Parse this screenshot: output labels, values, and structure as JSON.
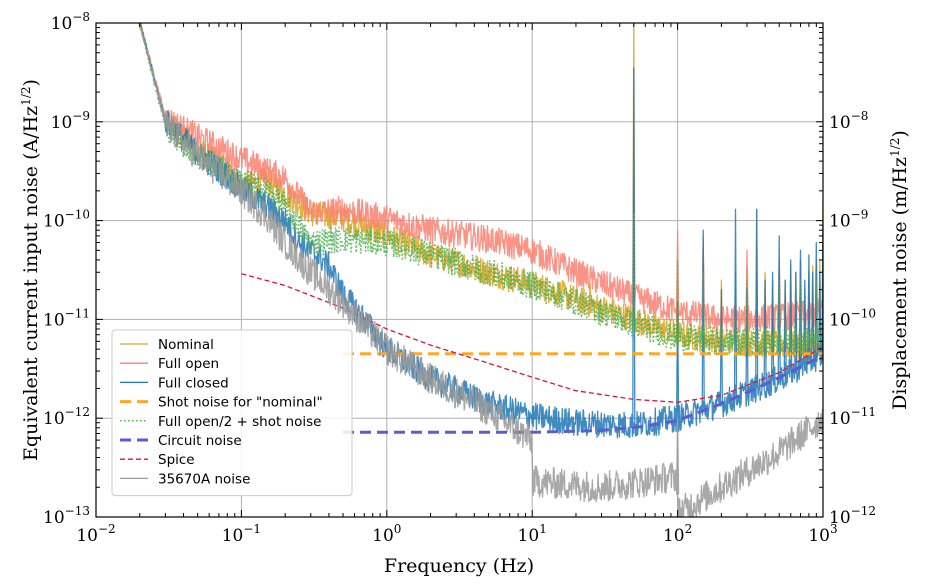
{
  "chart_data": {
    "type": "line",
    "xscale": "log",
    "yscale": "log",
    "xlim": [
      0.01,
      1000
    ],
    "ylim": [
      1e-13,
      1e-08
    ],
    "right_ylim": [
      1e-12,
      1e-07
    ],
    "grid": true,
    "legend_position": "lower-left",
    "xlabel": "Frequency (Hz)",
    "ylabel_left": "Equivalent current input noise (A/Hz",
    "ylabel_left_sup": "1/2",
    "ylabel_left_suffix": ")",
    "ylabel_right": "Displacement noise (m/Hz",
    "ylabel_right_sup": "1/2",
    "ylabel_right_suffix": ")",
    "x_ticks": [
      {
        "value": 0.01,
        "base": "10",
        "exp": "−2"
      },
      {
        "value": 0.1,
        "base": "10",
        "exp": "−1"
      },
      {
        "value": 1,
        "base": "10",
        "exp": "0"
      },
      {
        "value": 10,
        "base": "10",
        "exp": "1"
      },
      {
        "value": 100,
        "base": "10",
        "exp": "2"
      },
      {
        "value": 1000,
        "base": "10",
        "exp": "3"
      }
    ],
    "y_ticks_left": [
      {
        "value": 1e-13,
        "base": "10",
        "exp": "−13"
      },
      {
        "value": 1e-12,
        "base": "10",
        "exp": "−12"
      },
      {
        "value": 1e-11,
        "base": "10",
        "exp": "−11"
      },
      {
        "value": 1e-10,
        "base": "10",
        "exp": "−10"
      },
      {
        "value": 1e-09,
        "base": "10",
        "exp": "−9"
      },
      {
        "value": 1e-08,
        "base": "10",
        "exp": "−8"
      }
    ],
    "y_ticks_right": [
      {
        "value": 1e-12,
        "base": "10",
        "exp": "−12"
      },
      {
        "value": 1e-11,
        "base": "10",
        "exp": "−11"
      },
      {
        "value": 1e-10,
        "base": "10",
        "exp": "−10"
      },
      {
        "value": 1e-09,
        "base": "10",
        "exp": "−9"
      },
      {
        "value": 1e-08,
        "base": "10",
        "exp": "−8"
      }
    ],
    "series": [
      {
        "name": "Nominal",
        "color": "#daa520",
        "style": "solid",
        "width": 1.3,
        "noise_amp": 0.14,
        "dense": true,
        "points": [
          [
            0.01,
            3e-07
          ],
          [
            0.02,
            1e-08
          ],
          [
            0.03,
            1.05e-09
          ],
          [
            0.05,
            5.2e-10
          ],
          [
            0.08,
            3.2e-10
          ],
          [
            0.1,
            2.3e-10
          ],
          [
            0.15,
            2.5e-10
          ],
          [
            0.2,
            1.9e-10
          ],
          [
            0.3,
            1.2e-10
          ],
          [
            0.5,
            1.05e-10
          ],
          [
            1,
            7e-11
          ],
          [
            2,
            4.5e-11
          ],
          [
            5,
            3e-11
          ],
          [
            10,
            2.3e-11
          ],
          [
            20,
            1.6e-11
          ],
          [
            50,
            1e-11
          ],
          [
            100,
            7e-12
          ],
          [
            200,
            6e-12
          ],
          [
            500,
            5.5e-12
          ],
          [
            1000,
            5e-12
          ]
        ],
        "spikes": [
          [
            25,
            2.3e-11
          ],
          [
            50,
            1.2e-08
          ],
          [
            100,
            3.5e-11
          ],
          [
            150,
            7e-11
          ],
          [
            200,
            2.5e-11
          ],
          [
            250,
            3e-11
          ],
          [
            300,
            3.5e-11
          ],
          [
            350,
            1.3e-10
          ],
          [
            400,
            3e-11
          ],
          [
            450,
            2.5e-11
          ],
          [
            500,
            3e-11
          ],
          [
            550,
            2.5e-11
          ],
          [
            600,
            3.5e-11
          ],
          [
            650,
            3e-11
          ],
          [
            700,
            4e-11
          ],
          [
            750,
            2e-11
          ],
          [
            800,
            3e-11
          ],
          [
            850,
            3.5e-11
          ],
          [
            900,
            2.5e-11
          ],
          [
            950,
            4e-11
          ],
          [
            1000,
            1.6e-10
          ]
        ]
      },
      {
        "name": "Full open",
        "color": "#fa8072",
        "style": "solid",
        "width": 1.3,
        "noise_amp": 0.14,
        "dense": true,
        "points": [
          [
            0.01,
            3e-07
          ],
          [
            0.02,
            1e-08
          ],
          [
            0.03,
            1.1e-09
          ],
          [
            0.05,
            7e-10
          ],
          [
            0.1,
            4.2e-10
          ],
          [
            0.15,
            3.2e-10
          ],
          [
            0.2,
            2.7e-10
          ],
          [
            0.3,
            1.2e-10
          ],
          [
            0.5,
            1.3e-10
          ],
          [
            1,
            1.05e-10
          ],
          [
            2,
            8e-11
          ],
          [
            5,
            6.5e-11
          ],
          [
            10,
            5e-11
          ],
          [
            20,
            3e-11
          ],
          [
            50,
            1.7e-11
          ],
          [
            100,
            1.2e-11
          ],
          [
            200,
            1e-11
          ],
          [
            500,
            1.05e-11
          ],
          [
            1000,
            1.2e-11
          ]
        ],
        "spikes": [
          [
            50,
            2.5e-10
          ],
          [
            100,
            8e-11
          ],
          [
            150,
            6e-11
          ],
          [
            300,
            5e-11
          ],
          [
            500,
            4e-11
          ],
          [
            700,
            4e-11
          ],
          [
            900,
            4e-11
          ]
        ]
      },
      {
        "name": "Full closed",
        "color": "#1f77b4",
        "style": "solid",
        "width": 1.3,
        "noise_amp": 0.14,
        "dense": true,
        "points": [
          [
            0.01,
            3e-07
          ],
          [
            0.02,
            1e-08
          ],
          [
            0.03,
            1e-09
          ],
          [
            0.05,
            4.8e-10
          ],
          [
            0.08,
            2.8e-10
          ],
          [
            0.1,
            2.1e-10
          ],
          [
            0.15,
            1.4e-10
          ],
          [
            0.2,
            1e-10
          ],
          [
            0.25,
            6e-11
          ],
          [
            0.3,
            5e-11
          ],
          [
            0.4,
            3.5e-11
          ],
          [
            0.5,
            1.8e-11
          ],
          [
            0.7,
            1e-11
          ],
          [
            1,
            5e-12
          ],
          [
            2,
            2.5e-12
          ],
          [
            5,
            1.4e-12
          ],
          [
            10,
            1.05e-12
          ],
          [
            20,
            9e-13
          ],
          [
            50,
            8.5e-13
          ],
          [
            100,
            1e-12
          ],
          [
            200,
            1.4e-12
          ],
          [
            500,
            2.5e-12
          ],
          [
            1000,
            4.5e-12
          ]
        ],
        "spikes": [
          [
            50,
            3.5e-09
          ],
          [
            100,
            1.5e-11
          ],
          [
            150,
            8e-11
          ],
          [
            200,
            2e-11
          ],
          [
            250,
            1.3e-10
          ],
          [
            300,
            2e-11
          ],
          [
            350,
            1.3e-10
          ],
          [
            400,
            2.5e-11
          ],
          [
            450,
            3e-11
          ],
          [
            500,
            7e-11
          ],
          [
            550,
            2.5e-11
          ],
          [
            600,
            4e-11
          ],
          [
            650,
            3e-11
          ],
          [
            700,
            5e-11
          ],
          [
            750,
            2.5e-11
          ],
          [
            800,
            4.5e-11
          ],
          [
            850,
            3e-11
          ],
          [
            900,
            6e-11
          ],
          [
            950,
            3e-11
          ],
          [
            1000,
            1e-10
          ]
        ]
      },
      {
        "name": "Shot noise for \"nominal\"",
        "color": "#ffa726",
        "style": "dashed",
        "width": 3,
        "noise_amp": 0,
        "dense": false,
        "points": [
          [
            0.5,
            4.5e-12
          ],
          [
            1000,
            4.5e-12
          ]
        ],
        "spikes": []
      },
      {
        "name": "Full open/2 + shot noise",
        "color": "#4caf50",
        "style": "dotted",
        "width": 1.5,
        "noise_amp": 0.14,
        "dense": true,
        "points": [
          [
            0.01,
            3e-07
          ],
          [
            0.02,
            1e-08
          ],
          [
            0.03,
            9e-10
          ],
          [
            0.05,
            4.5e-10
          ],
          [
            0.1,
            2.5e-10
          ],
          [
            0.15,
            2e-10
          ],
          [
            0.2,
            1.4e-10
          ],
          [
            0.3,
            6e-11
          ],
          [
            0.5,
            6.5e-11
          ],
          [
            1,
            6e-11
          ],
          [
            2,
            4.5e-11
          ],
          [
            5,
            3e-11
          ],
          [
            10,
            2.2e-11
          ],
          [
            20,
            1.5e-11
          ],
          [
            50,
            9e-12
          ],
          [
            100,
            6.5e-12
          ],
          [
            200,
            6e-12
          ],
          [
            500,
            6e-12
          ],
          [
            1000,
            6.2e-12
          ]
        ],
        "spikes": [
          [
            50,
            1.2e-10
          ],
          [
            100,
            4e-11
          ],
          [
            150,
            3e-11
          ],
          [
            300,
            2.5e-11
          ],
          [
            500,
            2.5e-11
          ],
          [
            700,
            2.5e-11
          ],
          [
            900,
            2.5e-11
          ]
        ]
      },
      {
        "name": "Circuit noise",
        "color": "#5b5bd6",
        "style": "dashed",
        "width": 3,
        "noise_amp": 0,
        "dense": false,
        "points": [
          [
            0.5,
            7.2e-13
          ],
          [
            10,
            7.2e-13
          ],
          [
            30,
            7.5e-13
          ],
          [
            60,
            8.3e-13
          ],
          [
            100,
            9.5e-13
          ],
          [
            200,
            1.4e-12
          ],
          [
            400,
            2.2e-12
          ],
          [
            700,
            3.3e-12
          ],
          [
            1000,
            4.3e-12
          ]
        ],
        "spikes": []
      },
      {
        "name": "Spice",
        "color": "#dc143c",
        "style": "dashed",
        "width": 1.3,
        "noise_amp": 0,
        "dense": false,
        "points": [
          [
            0.1,
            2.9e-11
          ],
          [
            0.2,
            2.2e-11
          ],
          [
            0.5,
            1.3e-11
          ],
          [
            1,
            8e-12
          ],
          [
            2,
            5.5e-12
          ],
          [
            5,
            3.6e-12
          ],
          [
            10,
            2.6e-12
          ],
          [
            20,
            1.9e-12
          ],
          [
            50,
            1.55e-12
          ],
          [
            100,
            1.45e-12
          ],
          [
            200,
            1.7e-12
          ],
          [
            500,
            2.9e-12
          ],
          [
            1000,
            5.3e-12
          ]
        ],
        "spikes": []
      },
      {
        "name": "35670A noise",
        "color": "#999999",
        "style": "solid",
        "width": 1.3,
        "noise_amp": 0.16,
        "dense": true,
        "points": [
          [
            0.01,
            3e-07
          ],
          [
            0.02,
            1e-08
          ],
          [
            0.03,
            9.5e-10
          ],
          [
            0.05,
            4.5e-10
          ],
          [
            0.1,
            2e-10
          ],
          [
            0.15,
            1.1e-10
          ],
          [
            0.2,
            6e-11
          ],
          [
            0.3,
            3e-11
          ],
          [
            0.5,
            1.5e-11
          ],
          [
            1,
            5e-12
          ],
          [
            2,
            2.5e-12
          ],
          [
            5,
            1.2e-12
          ],
          [
            9.9,
            6e-13
          ],
          [
            10.1,
            2.3e-13
          ],
          [
            30,
            2e-13
          ],
          [
            60,
            2.3e-13
          ],
          [
            99,
            2.6e-13
          ],
          [
            101,
            1.1e-13
          ],
          [
            200,
            2e-13
          ],
          [
            500,
            4.5e-13
          ],
          [
            1000,
            1e-12
          ]
        ],
        "spikes": [
          [
            100,
            1e-12
          ]
        ]
      }
    ]
  }
}
